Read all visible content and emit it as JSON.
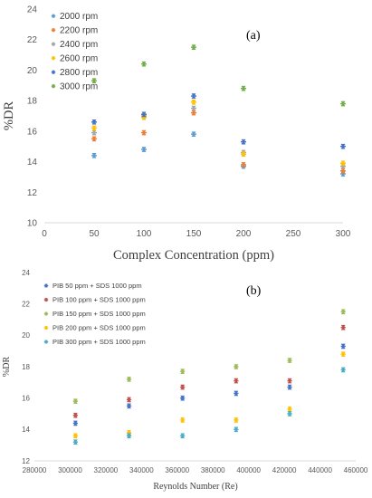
{
  "chart_data": [
    {
      "type": "scatter",
      "panel_label": "(a)",
      "xlabel": "Complex Concentration (ppm)",
      "ylabel": "%DR",
      "xlim": [
        0,
        300
      ],
      "ylim": [
        10,
        24
      ],
      "xticks": [
        0,
        50,
        100,
        150,
        200,
        250,
        300
      ],
      "yticks": [
        10,
        12,
        14,
        16,
        18,
        20,
        22,
        24
      ],
      "grid": false,
      "legend": "top-left",
      "x": [
        50,
        100,
        150,
        200,
        300
      ],
      "series": [
        {
          "name": "2000 rpm",
          "color": "#5b9bd5",
          "values": [
            14.4,
            14.8,
            15.8,
            13.7,
            13.2
          ]
        },
        {
          "name": "2200 rpm",
          "color": "#ed7d31",
          "values": [
            15.5,
            15.9,
            17.2,
            13.8,
            13.4
          ]
        },
        {
          "name": "2400 rpm",
          "color": "#a5a5a5",
          "values": [
            15.9,
            17.0,
            17.5,
            14.6,
            13.7
          ]
        },
        {
          "name": "2600 rpm",
          "color": "#ffc000",
          "values": [
            16.2,
            16.9,
            17.9,
            14.5,
            13.9
          ]
        },
        {
          "name": "2800 rpm",
          "color": "#4472c4",
          "values": [
            16.6,
            17.1,
            18.3,
            15.3,
            15.0
          ]
        },
        {
          "name": "3000 rpm",
          "color": "#70ad47",
          "values": [
            19.3,
            20.4,
            21.5,
            18.8,
            17.8
          ]
        }
      ]
    },
    {
      "type": "scatter",
      "panel_label": "(b)",
      "xlabel": "Reynolds Number (Re)",
      "ylabel": "%DR",
      "xlim": [
        280000,
        460000
      ],
      "ylim": [
        12,
        24
      ],
      "xticks": [
        280000,
        300000,
        320000,
        340000,
        360000,
        380000,
        400000,
        420000,
        440000,
        460000
      ],
      "yticks": [
        12,
        14,
        16,
        18,
        20,
        22,
        24
      ],
      "grid": false,
      "legend": "top-left",
      "x": [
        303000,
        333000,
        363000,
        393000,
        423000,
        453000
      ],
      "series": [
        {
          "name": "PIB 50 ppm + SDS 1000 ppm",
          "color": "#4472c4",
          "values": [
            14.4,
            15.5,
            16.0,
            16.3,
            16.7,
            19.3
          ]
        },
        {
          "name": "PIB 100 ppm + SDS 1000 ppm",
          "color": "#c0504d",
          "values": [
            14.9,
            15.9,
            16.7,
            17.1,
            17.1,
            20.5
          ]
        },
        {
          "name": "PIB 150 ppm + SDS 1000 ppm",
          "color": "#9bbb59",
          "values": [
            15.8,
            17.2,
            17.7,
            18.0,
            18.4,
            21.5
          ]
        },
        {
          "name": "PIB 200 ppm + SDS 1000 ppm",
          "color": "#ffc000",
          "values": [
            13.6,
            13.8,
            14.6,
            14.6,
            15.3,
            18.8
          ]
        },
        {
          "name": "PIB 300 ppm + SDS 1000 ppm",
          "color": "#4bacc6",
          "values": [
            13.2,
            13.6,
            13.6,
            14.0,
            15.0,
            17.8
          ]
        }
      ]
    }
  ]
}
